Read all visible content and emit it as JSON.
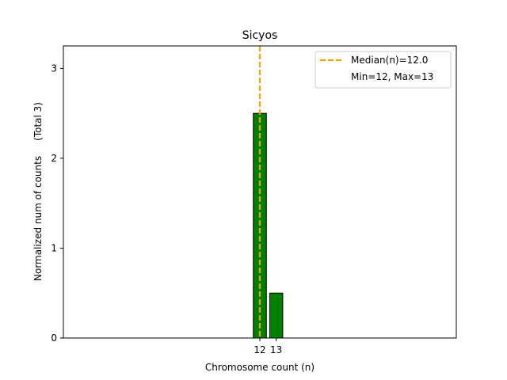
{
  "chart_data": {
    "type": "bar",
    "title": "Sicyos",
    "xlabel": "Chromosome count (n)",
    "ylabel": "Normalized num of counts     (Total 3)",
    "categories": [
      12,
      13
    ],
    "values": [
      2.5,
      0.5
    ],
    "x_ticks": [
      "12",
      "13"
    ],
    "y_ticks": [
      0,
      1,
      2,
      3
    ],
    "xlim": [
      0.0,
      24.0
    ],
    "ylim": [
      0,
      3.25
    ],
    "bar_color": "#008000",
    "bar_edge_color": "#000000",
    "median": {
      "value": 12.0,
      "label": "Median(n)=12.0",
      "color": "#f0a30a"
    },
    "legend": {
      "position": "top-right",
      "entries": [
        "Median(n)=12.0",
        "Min=12, Max=13"
      ]
    },
    "grid": false
  }
}
